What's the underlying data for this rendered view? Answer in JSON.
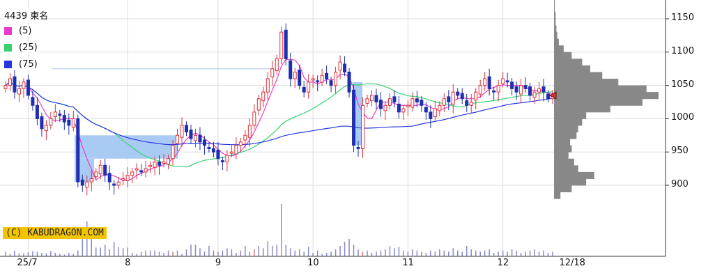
{
  "chart_data": {
    "type": "candlestick",
    "title": "4439 東名",
    "legend": [
      {
        "label": "(5)",
        "color": "#e83ad0"
      },
      {
        "label": "(25)",
        "color": "#38d16f"
      },
      {
        "label": "(75)",
        "color": "#2436e0"
      }
    ],
    "ylim": [
      860,
      1180
    ],
    "yticks": [
      {
        "v": 1150,
        "t": "1150"
      },
      {
        "v": 1100,
        "t": "1100"
      },
      {
        "v": 1050,
        "t": "1050"
      },
      {
        "v": 1000,
        "t": "1000"
      },
      {
        "v": 950,
        "t": "950"
      },
      {
        "v": 900,
        "t": "900"
      }
    ],
    "xticks": [
      {
        "i": 5,
        "t": "25/7"
      },
      {
        "i": 27,
        "t": "8"
      },
      {
        "i": 47,
        "t": "9"
      },
      {
        "i": 68,
        "t": "10"
      },
      {
        "i": 89,
        "t": "11"
      },
      {
        "i": 110,
        "t": "12"
      },
      {
        "i": 124,
        "t": "12/18"
      }
    ],
    "closes": [
      1050,
      1060,
      1040,
      1045,
      1055,
      1035,
      1020,
      1000,
      985,
      990,
      1000,
      1010,
      1005,
      995,
      990,
      1000,
      905,
      900,
      905,
      910,
      920,
      930,
      915,
      905,
      900,
      905,
      910,
      915,
      920,
      925,
      920,
      925,
      930,
      935,
      930,
      935,
      940,
      960,
      975,
      990,
      980,
      970,
      975,
      965,
      960,
      955,
      950,
      940,
      935,
      945,
      950,
      960,
      965,
      975,
      990,
      1010,
      1030,
      1040,
      1060,
      1075,
      1090,
      1130,
      1090,
      1060,
      1070,
      1050,
      1040,
      1055,
      1060,
      1055,
      1065,
      1060,
      1050,
      1070,
      1085,
      1070,
      1040,
      960,
      955,
      1020,
      1030,
      1035,
      1025,
      1015,
      1020,
      1030,
      1025,
      1010,
      1015,
      1020,
      1030,
      1025,
      1020,
      1010,
      1000,
      1015,
      1020,
      1030,
      1025,
      1040,
      1035,
      1030,
      1020,
      1025,
      1040,
      1050,
      1060,
      1045,
      1040,
      1050,
      1060,
      1055,
      1045,
      1040,
      1050,
      1045,
      1035,
      1040,
      1045,
      1040,
      1030,
      1035
    ],
    "volumes": [
      8,
      4,
      10,
      5,
      5,
      7,
      9,
      8,
      6,
      5,
      9,
      6,
      4,
      3,
      6,
      4,
      10,
      50,
      60,
      45,
      15,
      15,
      20,
      12,
      25,
      16,
      14,
      15,
      6,
      4,
      8,
      10,
      10,
      10,
      8,
      6,
      10,
      8,
      10,
      4,
      12,
      20,
      20,
      14,
      8,
      18,
      10,
      8,
      10,
      14,
      12,
      6,
      10,
      18,
      8,
      12,
      18,
      14,
      26,
      18,
      20,
      90,
      20,
      14,
      10,
      12,
      8,
      16,
      6,
      10,
      4,
      6,
      8,
      12,
      18,
      25,
      30,
      20,
      12,
      8,
      10,
      6,
      8,
      10,
      12,
      18,
      14,
      16,
      10,
      8,
      12,
      10,
      8,
      6,
      10,
      8,
      12,
      10,
      8,
      14,
      10,
      8,
      18,
      12,
      10,
      8,
      10,
      12,
      6,
      8,
      10,
      8,
      12,
      10,
      6,
      8,
      10,
      12,
      8,
      10,
      6,
      8
    ],
    "last_price": 1035,
    "reference_line": 1075,
    "volume_profile": [
      [
        880,
        8
      ],
      [
        890,
        22
      ],
      [
        900,
        40
      ],
      [
        910,
        50
      ],
      [
        920,
        30
      ],
      [
        930,
        25
      ],
      [
        940,
        18
      ],
      [
        950,
        22
      ],
      [
        960,
        20
      ],
      [
        970,
        28
      ],
      [
        980,
        30
      ],
      [
        990,
        35
      ],
      [
        1000,
        40
      ],
      [
        1010,
        70
      ],
      [
        1020,
        110
      ],
      [
        1030,
        130
      ],
      [
        1040,
        115
      ],
      [
        1050,
        80
      ],
      [
        1060,
        60
      ],
      [
        1070,
        45
      ],
      [
        1080,
        35
      ],
      [
        1090,
        22
      ],
      [
        1100,
        12
      ],
      [
        1110,
        6
      ],
      [
        1120,
        4
      ],
      [
        1130,
        3
      ],
      [
        1140,
        2
      ],
      [
        1150,
        2
      ],
      [
        1160,
        1
      ],
      [
        1170,
        1
      ]
    ]
  },
  "copyright": "(C) KABUDRAGON.COM"
}
